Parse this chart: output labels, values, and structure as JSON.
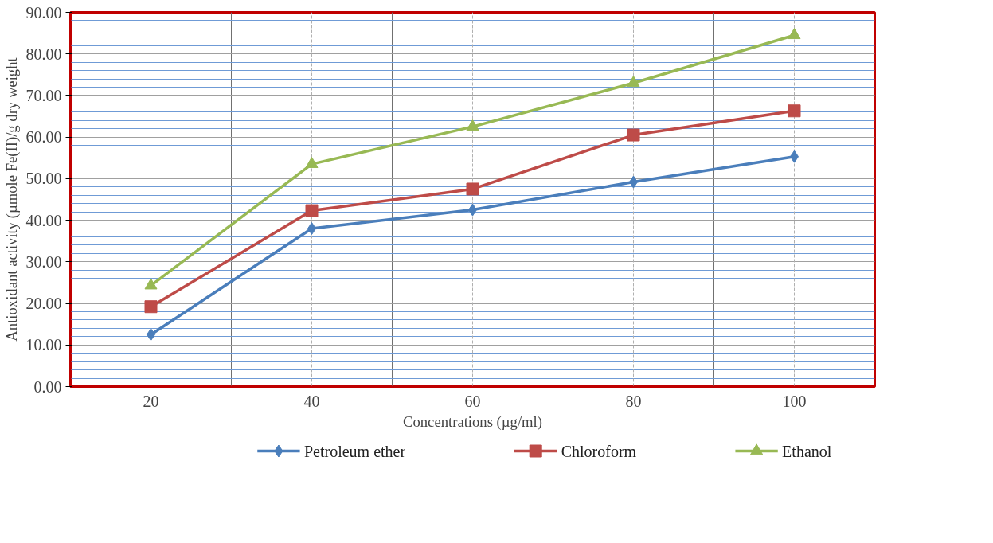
{
  "chart_data": {
    "type": "line",
    "xlabel": "Concentrations (µg/ml)",
    "ylabel": "Antioxidant activity (µmole Fe(II)/g dry weight",
    "categories": [
      "20",
      "40",
      "60",
      "80",
      "100"
    ],
    "series": [
      {
        "name": "Petroleum ether",
        "color": "#4a7ebb",
        "marker": "diamond",
        "values": [
          12.5,
          38.0,
          42.5,
          49.2,
          55.3
        ]
      },
      {
        "name": "Chloroform",
        "color": "#be4b48",
        "marker": "square",
        "values": [
          19.2,
          42.3,
          47.5,
          60.5,
          66.3
        ]
      },
      {
        "name": "Ethanol",
        "color": "#98b954",
        "marker": "triangle",
        "values": [
          24.3,
          53.5,
          62.5,
          73.0,
          84.5
        ]
      }
    ],
    "ylim": [
      0,
      90
    ],
    "yticks": [
      {
        "value": 0,
        "label": "0.00"
      },
      {
        "value": 10,
        "label": "10.00"
      },
      {
        "value": 20,
        "label": "20.00"
      },
      {
        "value": 30,
        "label": "30.00"
      },
      {
        "value": 40,
        "label": "40.00"
      },
      {
        "value": 50,
        "label": "50.00"
      },
      {
        "value": 60,
        "label": "60.00"
      },
      {
        "value": 70,
        "label": "70.00"
      },
      {
        "value": 80,
        "label": "80.00"
      },
      {
        "value": 90,
        "label": "90.00"
      }
    ],
    "grid": true,
    "legend": "bottom",
    "line_style": "solid"
  }
}
